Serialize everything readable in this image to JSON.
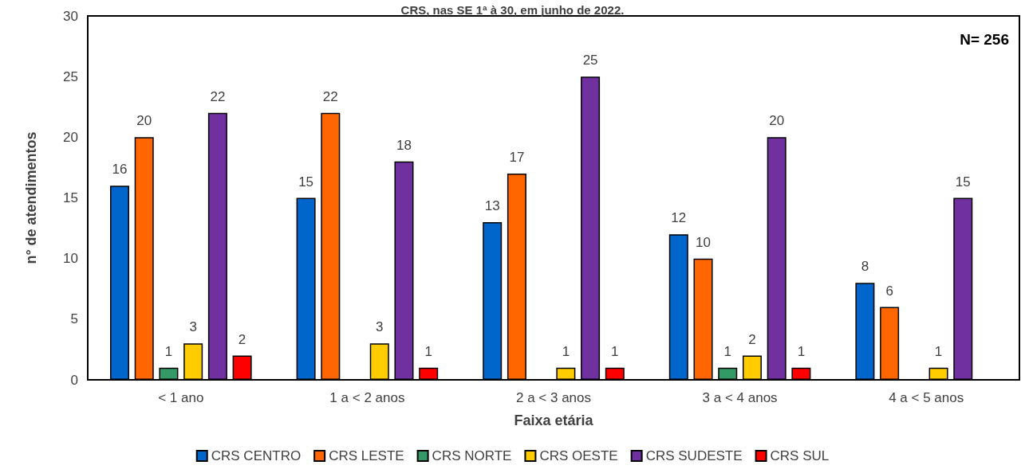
{
  "chart_data": {
    "type": "bar",
    "title": "CRS, nas SE 1ª à 30, em junho de 2022.",
    "xlabel": "Faixa etária",
    "ylabel": "n° de atendimentos",
    "annotations": [
      "N= 256"
    ],
    "categories": [
      "< 1 ano",
      "1 a < 2 anos",
      "2 a < 3 anos",
      "3 a < 4 anos",
      "4 a < 5 anos"
    ],
    "series": [
      {
        "name": "CRS CENTRO",
        "color": "#0066cc",
        "values": [
          16,
          15,
          13,
          12,
          8
        ]
      },
      {
        "name": "CRS LESTE",
        "color": "#ff6600",
        "values": [
          20,
          22,
          17,
          10,
          6
        ]
      },
      {
        "name": "CRS NORTE",
        "color": "#339966",
        "values": [
          1,
          null,
          null,
          1,
          null
        ]
      },
      {
        "name": "CRS OESTE",
        "color": "#ffcc00",
        "values": [
          3,
          3,
          1,
          2,
          1
        ]
      },
      {
        "name": "CRS SUDESTE",
        "color": "#7030a0",
        "values": [
          22,
          18,
          25,
          20,
          15
        ]
      },
      {
        "name": "CRS SUL",
        "color": "#ff0000",
        "values": [
          2,
          1,
          1,
          1,
          null
        ]
      }
    ],
    "ylim": [
      0,
      30
    ],
    "yticks": [
      0,
      5,
      10,
      15,
      20,
      25,
      30
    ],
    "grid": false,
    "legend": "bottom",
    "data_labels": true
  }
}
